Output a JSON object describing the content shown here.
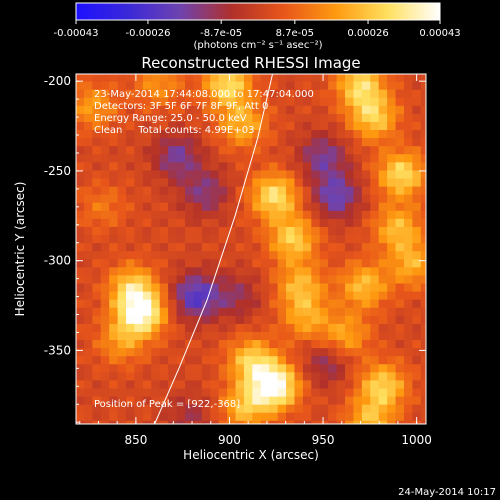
{
  "chart_data": {
    "type": "heatmap",
    "title": "Reconstructed RHESSI Image",
    "xlabel": "Heliocentric X (arcsec)",
    "ylabel": "Heliocentric Y (arcsec)",
    "xlim": [
      818,
      1005
    ],
    "ylim": [
      -391,
      -196
    ],
    "x_ticks": [
      850,
      900,
      950,
      1000
    ],
    "x_tick_labels": [
      "850",
      "900",
      "950",
      "1000"
    ],
    "y_ticks": [
      -200,
      -250,
      -300,
      -350
    ],
    "y_tick_labels": [
      "-200",
      "-250",
      "-300",
      "-350"
    ],
    "colorbar": {
      "range": [
        -0.00043,
        0.00043
      ],
      "ticks": [
        -0.00043,
        -0.00026,
        -8.7e-05,
        8.7e-05,
        0.00026,
        0.00043
      ],
      "tick_labels": [
        "-0.00043",
        "-0.00026",
        "-8.7e-05",
        "8.7e-05",
        "0.00026",
        "0.00043"
      ],
      "unit_label": "(photons cm⁻² s⁻¹ asec⁻²)",
      "colors": [
        "#1d10ff",
        "#3a28d8",
        "#6e43b0",
        "#b0302a",
        "#e8561a",
        "#ff9a10",
        "#ffe060",
        "#ffffff"
      ]
    },
    "info_lines": [
      "23-May-2014 17:44:08.000 to 17:47:04.000",
      "Detectors: 3F 5F 6F 7F 8F 9F, Att 0",
      "Energy Range: 25.0 - 50.0 keV",
      "Clean     Total counts: 4.99E+03"
    ],
    "peak_label": "Position of Peak = [922,-368]",
    "limb": [
      [
        923,
        -196
      ],
      [
        915,
        -232
      ],
      [
        903,
        -275
      ],
      [
        888,
        -322
      ],
      [
        873,
        -360
      ],
      [
        860,
        -391
      ]
    ],
    "sources": [
      {
        "x": 897,
        "y": -200,
        "value": 0.00029
      },
      {
        "x": 905,
        "y": -222,
        "value": 0.00021
      },
      {
        "x": 922,
        "y": -262,
        "value": 0.0003
      },
      {
        "x": 932,
        "y": -286,
        "value": 0.00026
      },
      {
        "x": 936,
        "y": -312,
        "value": 0.00021
      },
      {
        "x": 939,
        "y": -330,
        "value": 0.00018
      },
      {
        "x": 851,
        "y": -327,
        "value": 0.00039
      },
      {
        "x": 846,
        "y": -313,
        "value": 0.00024
      },
      {
        "x": 840,
        "y": -343,
        "value": 0.00016
      },
      {
        "x": 860,
        "y": -200,
        "value": 0.00015
      },
      {
        "x": 922,
        "y": -368,
        "value": 0.00043
      },
      {
        "x": 910,
        "y": -354,
        "value": 0.00026
      },
      {
        "x": 906,
        "y": -380,
        "value": 0.00022
      },
      {
        "x": 968,
        "y": -200,
        "value": 0.00028
      },
      {
        "x": 975,
        "y": -218,
        "value": 0.00026
      },
      {
        "x": 990,
        "y": -250,
        "value": 0.00029
      },
      {
        "x": 988,
        "y": -280,
        "value": 0.00022
      },
      {
        "x": 996,
        "y": -300,
        "value": 0.0002
      },
      {
        "x": 970,
        "y": -312,
        "value": 0.00023
      },
      {
        "x": 960,
        "y": -340,
        "value": 0.00019
      },
      {
        "x": 980,
        "y": -368,
        "value": 0.00027
      },
      {
        "x": 973,
        "y": -388,
        "value": 0.00022
      },
      {
        "x": 825,
        "y": -212,
        "value": 0.00017
      },
      {
        "x": 830,
        "y": -268,
        "value": 0.0001
      },
      {
        "x": 870,
        "y": -240,
        "value": -0.00018
      },
      {
        "x": 880,
        "y": -318,
        "value": -0.00026
      },
      {
        "x": 885,
        "y": -260,
        "value": -0.00016
      },
      {
        "x": 955,
        "y": -262,
        "value": -0.00022
      },
      {
        "x": 948,
        "y": -240,
        "value": -0.00018
      },
      {
        "x": 950,
        "y": -355,
        "value": -0.00014
      },
      {
        "x": 877,
        "y": -385,
        "value": -0.0001
      },
      {
        "x": 902,
        "y": -318,
        "value": -0.00012
      }
    ]
  },
  "footer": {
    "timestamp": "24-May-2014 10:17"
  }
}
